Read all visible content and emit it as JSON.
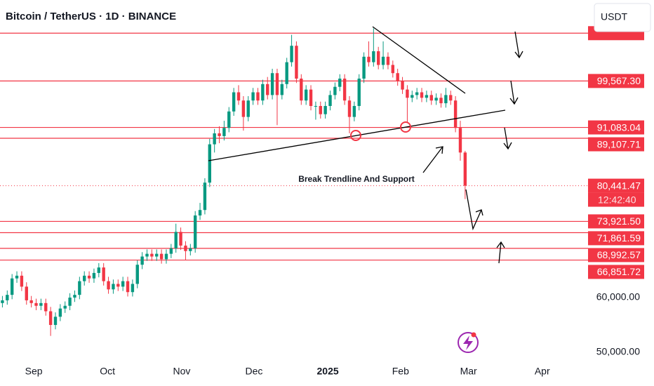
{
  "chart_data": {
    "type": "candlestick",
    "title": "Bitcoin / TetherUS · 1D · BINANCE",
    "currency": "USDT",
    "annotation": "Break Trendline And Support",
    "up_color": "#089981",
    "down_color": "#f23645",
    "level_color": "#f23645",
    "xlim": [
      -0.5,
      121.5
    ],
    "xticks": [
      {
        "value": 6.5,
        "label": "Sep"
      },
      {
        "value": 21.8,
        "label": "Oct"
      },
      {
        "value": 37.2,
        "label": "Nov"
      },
      {
        "value": 52.2,
        "label": "Dec"
      },
      {
        "value": 67.5,
        "label": "2025"
      },
      {
        "value": 82.6,
        "label": "Feb"
      },
      {
        "value": 96.7,
        "label": "Mar"
      },
      {
        "value": 112,
        "label": "Apr"
      }
    ],
    "ylim": [
      43850,
      114360
    ],
    "yticks": [
      {
        "value": 60000,
        "label": "60,000.00"
      },
      {
        "value": 50000,
        "label": "50,000.00"
      }
    ],
    "levels": [
      {
        "value": 108300
      },
      {
        "value": 99567.3,
        "label": "99,567.30"
      },
      {
        "value": 91083.04,
        "label": "91,083.04"
      },
      {
        "value": 89107.71,
        "label": "89,107.71"
      },
      {
        "value": 73921.5,
        "label": "73,921.50"
      },
      {
        "value": 71861.59,
        "label": "71,861.59"
      },
      {
        "value": 68992.57,
        "label": "68,992.57"
      },
      {
        "value": 66851.72,
        "label": "66,851.72"
      }
    ],
    "last_price": {
      "value": 80441.47,
      "label": "80,441.47"
    },
    "countdown": "12:42:40",
    "open": [
      59000,
      59500,
      60500,
      63500,
      64000,
      62000,
      59500,
      59000,
      58500,
      59000,
      57500,
      55000,
      56500,
      58000,
      58500,
      60000,
      60500,
      63000,
      64000,
      63500,
      64500,
      65500,
      63000,
      61500,
      62500,
      62000,
      63000,
      61000,
      62500,
      66000,
      67500,
      68000,
      67500,
      68000,
      67000,
      68000,
      69000,
      72000,
      69500,
      68500,
      69000,
      75000,
      76000,
      81000,
      88000,
      90000,
      89500,
      91000,
      94000,
      97500,
      96000,
      93000,
      96000,
      97500,
      96000,
      99000,
      97000,
      101000,
      97000,
      99000,
      103000,
      106000,
      100000,
      96000,
      98000,
      95000,
      95000,
      93500,
      95000,
      97000,
      98500,
      100000,
      96000,
      93000,
      95000,
      100000,
      104000,
      103000,
      105000,
      102500,
      104000,
      102500,
      101000,
      99500,
      98000,
      96500,
      97000,
      97500,
      96500,
      97000,
      96000,
      96500,
      95500,
      97000,
      96000,
      91000,
      86500
    ],
    "high": [
      60300,
      61300,
      64300,
      64800,
      64800,
      62800,
      60300,
      59800,
      59800,
      59800,
      58300,
      57300,
      58800,
      59300,
      60800,
      61300,
      63800,
      64800,
      64800,
      65300,
      66300,
      66300,
      63800,
      63300,
      63300,
      63800,
      63800,
      63300,
      66800,
      68300,
      68800,
      68800,
      68800,
      68800,
      68800,
      69800,
      73500,
      72800,
      70300,
      69800,
      75800,
      77300,
      81800,
      89000,
      90800,
      91300,
      92300,
      94800,
      98300,
      98800,
      96800,
      96800,
      98300,
      98300,
      99800,
      100300,
      101800,
      101800,
      99800,
      103800,
      108000,
      106800,
      100800,
      98800,
      98800,
      95800,
      95800,
      95800,
      97800,
      99300,
      100800,
      100800,
      96800,
      95800,
      100800,
      104800,
      106800,
      109200,
      105800,
      106800,
      104800,
      103300,
      101800,
      100300,
      98800,
      97800,
      98300,
      98300,
      97800,
      97800,
      97300,
      97300,
      98300,
      97800,
      96800,
      92300,
      86800
    ],
    "low": [
      58200,
      58700,
      59700,
      62700,
      61200,
      58700,
      58200,
      57700,
      57700,
      56700,
      53000,
      54200,
      55700,
      57200,
      57700,
      59200,
      59700,
      62200,
      62700,
      62700,
      63700,
      62200,
      60700,
      60700,
      61200,
      61200,
      60200,
      60200,
      61700,
      65200,
      66700,
      66700,
      66700,
      66200,
      66200,
      67200,
      68200,
      68700,
      66800,
      67700,
      68200,
      74200,
      75200,
      80200,
      86500,
      88200,
      88700,
      90200,
      93200,
      95200,
      90500,
      92200,
      95200,
      95200,
      95200,
      96200,
      96200,
      91500,
      96200,
      98200,
      102200,
      99200,
      95200,
      95200,
      94200,
      92500,
      92700,
      92700,
      94200,
      96200,
      97700,
      95200,
      90000,
      92200,
      94200,
      99200,
      102200,
      102200,
      101700,
      101700,
      101700,
      100200,
      98700,
      97200,
      92000,
      95700,
      96200,
      95700,
      95700,
      95200,
      95200,
      94700,
      94700,
      95200,
      90200,
      85000,
      78000
    ],
    "close": [
      59500,
      60500,
      63500,
      64000,
      62000,
      59500,
      59000,
      58500,
      59000,
      57500,
      55000,
      56500,
      58000,
      58500,
      60000,
      60500,
      63000,
      64000,
      63500,
      64500,
      65500,
      63000,
      61500,
      62500,
      62000,
      63000,
      61000,
      62500,
      66000,
      67500,
      68000,
      67500,
      68000,
      67000,
      68000,
      69000,
      72000,
      69500,
      68500,
      69000,
      75000,
      76000,
      81000,
      88000,
      90000,
      89500,
      91000,
      94000,
      97500,
      96000,
      93000,
      96000,
      97500,
      96000,
      99000,
      97000,
      101000,
      97000,
      99000,
      103000,
      106000,
      100000,
      96000,
      98000,
      95000,
      95000,
      93500,
      95000,
      97000,
      98500,
      100000,
      96000,
      93000,
      95000,
      100000,
      104000,
      103000,
      105000,
      102500,
      104000,
      102500,
      101000,
      99500,
      98000,
      96500,
      97000,
      97500,
      96500,
      97000,
      96000,
      96500,
      95500,
      97000,
      96000,
      91000,
      86500,
      80441.47
    ]
  }
}
